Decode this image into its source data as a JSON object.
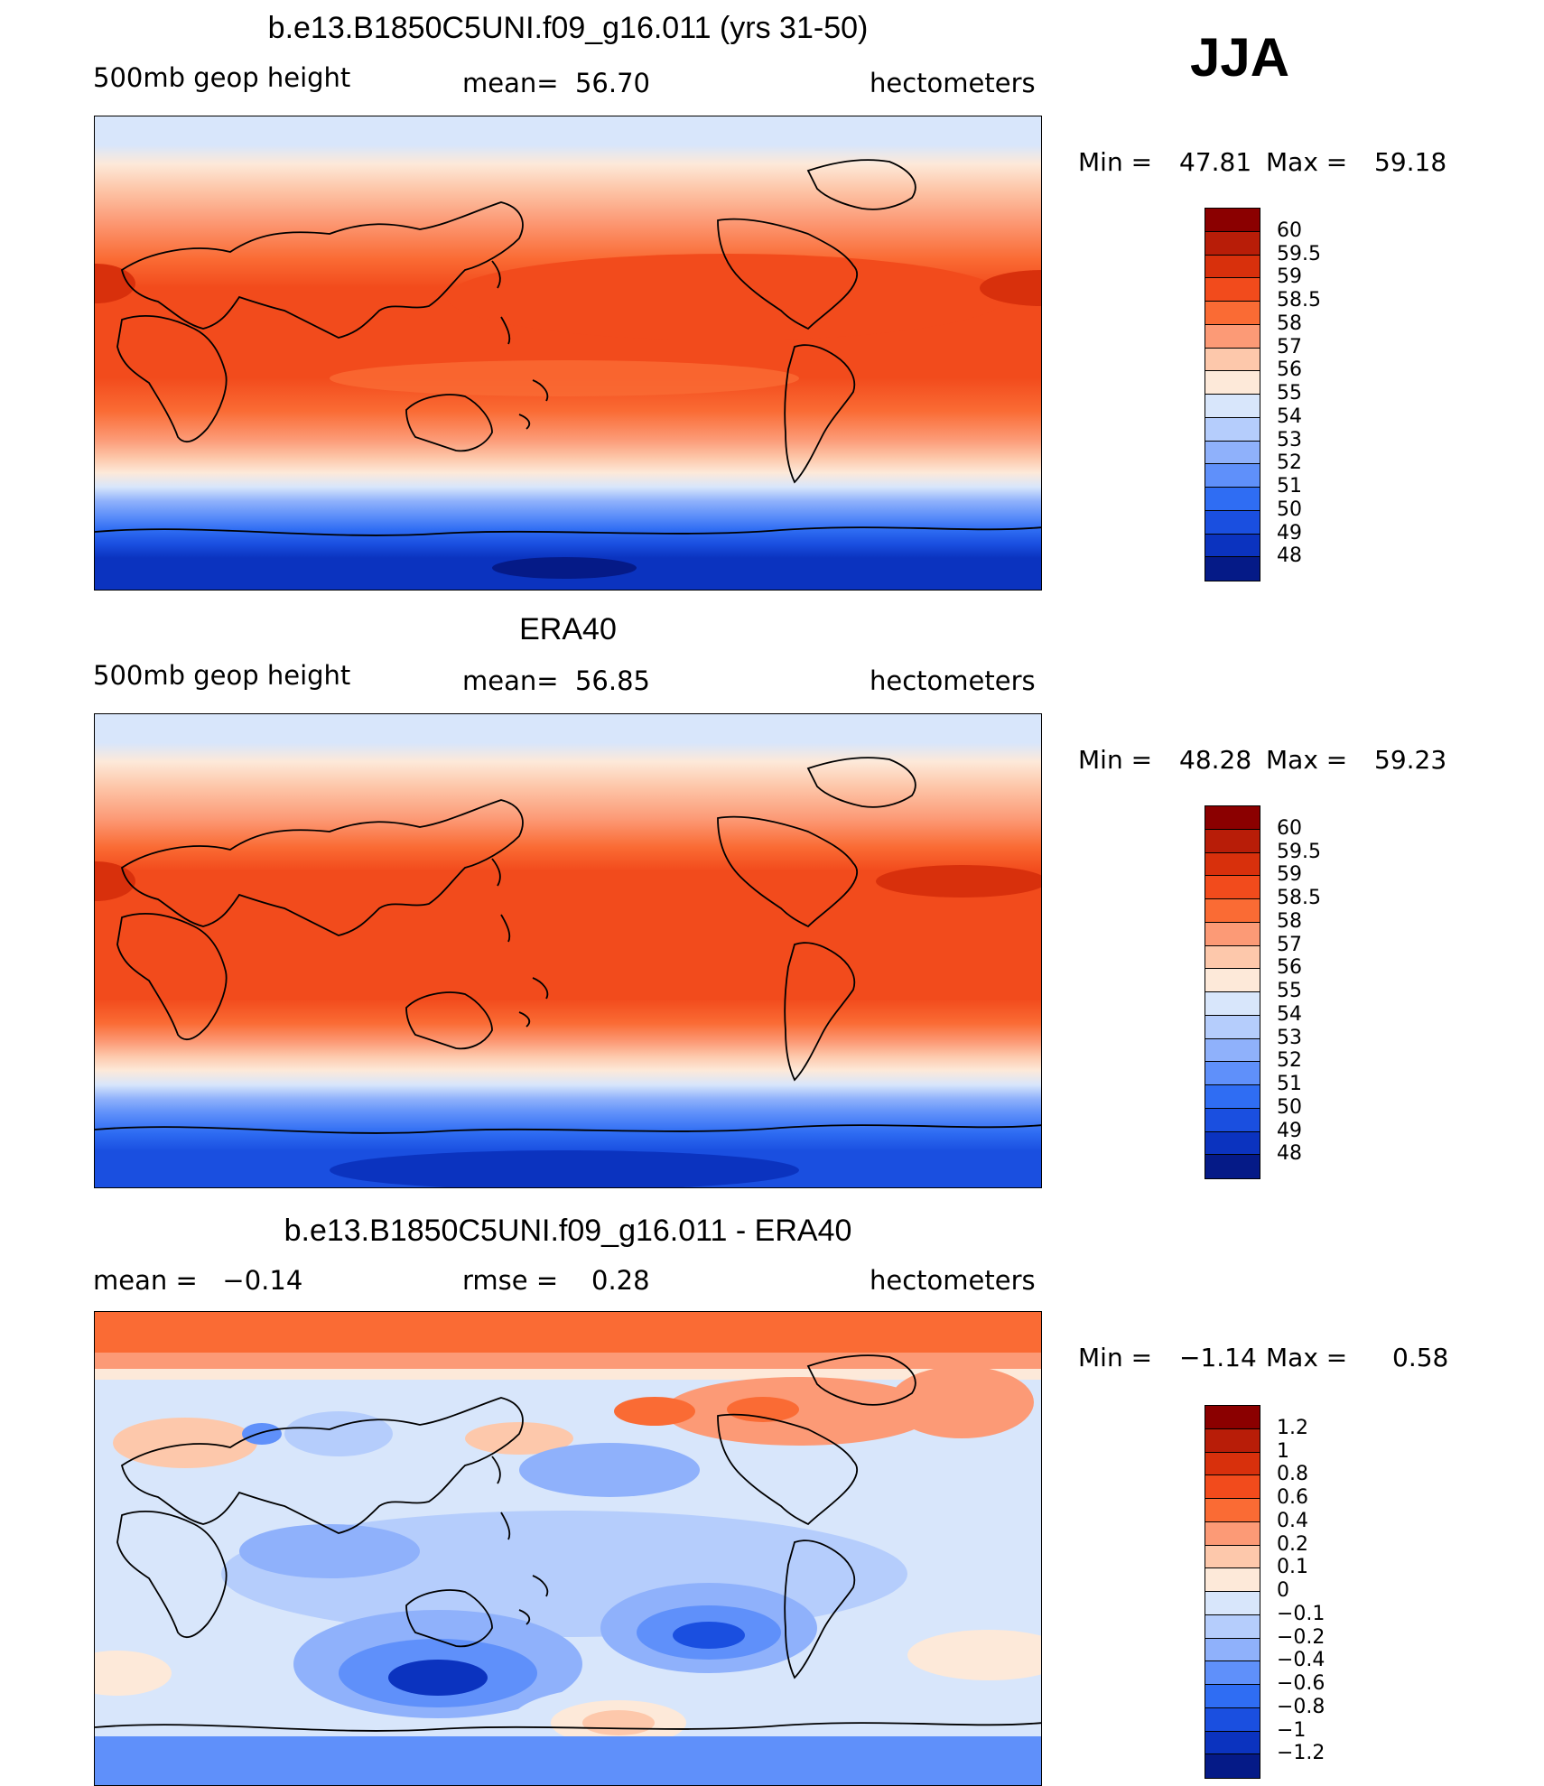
{
  "season": "JJA",
  "panels": [
    {
      "title": "b.e13.B1850C5UNI.f09_g16.011 (yrs 31-50)",
      "field_label": "500mb geop height",
      "stat_text": "mean=  56.70",
      "units": "hectometers",
      "minmax": {
        "min_label": "Min =",
        "min": "47.81",
        "max_label": "Max =",
        "max": "59.18"
      },
      "legend": {
        "labels": [
          "60",
          "59.5",
          "59",
          "58.5",
          "58",
          "57",
          "56",
          "55",
          "54",
          "53",
          "52",
          "51",
          "50",
          "49",
          "48"
        ],
        "colors": [
          "#8b0000",
          "#b81d08",
          "#d8300c",
          "#f24b1c",
          "#fa6b34",
          "#fc9a76",
          "#fdc8ab",
          "#fde9d9",
          "#d8e6fb",
          "#b5cdfc",
          "#8fb1fb",
          "#5f90fa",
          "#2f6df3",
          "#1a4fe0",
          "#0b33bf",
          "#051a87"
        ]
      }
    },
    {
      "title": "ERA40",
      "field_label": "500mb geop height",
      "stat_text": "mean=  56.85",
      "units": "hectometers",
      "minmax": {
        "min_label": "Min =",
        "min": "48.28",
        "max_label": "Max =",
        "max": "59.23"
      },
      "legend": {
        "labels": [
          "60",
          "59.5",
          "59",
          "58.5",
          "58",
          "57",
          "56",
          "55",
          "54",
          "53",
          "52",
          "51",
          "50",
          "49",
          "48"
        ],
        "colors": [
          "#8b0000",
          "#b81d08",
          "#d8300c",
          "#f24b1c",
          "#fa6b34",
          "#fc9a76",
          "#fdc8ab",
          "#fde9d9",
          "#d8e6fb",
          "#b5cdfc",
          "#8fb1fb",
          "#5f90fa",
          "#2f6df3",
          "#1a4fe0",
          "#0b33bf",
          "#051a87"
        ]
      }
    },
    {
      "title": "b.e13.B1850C5UNI.f09_g16.011 - ERA40",
      "field_label": "mean =   −0.14",
      "stat_text": "rmse =    0.28",
      "units": "hectometers",
      "minmax": {
        "min_label": "Min =",
        "min": "−1.14",
        "max_label": "Max =",
        "max": "0.58"
      },
      "legend": {
        "labels": [
          "1.2",
          "1",
          "0.8",
          "0.6",
          "0.4",
          "0.2",
          "0.1",
          "0",
          "−0.1",
          "−0.2",
          "−0.4",
          "−0.6",
          "−0.8",
          "−1",
          "−1.2"
        ],
        "colors": [
          "#8b0000",
          "#b81d08",
          "#d8300c",
          "#f24b1c",
          "#fa6b34",
          "#fc9a76",
          "#fdc8ab",
          "#fde9d9",
          "#d8e6fb",
          "#b5cdfc",
          "#8fb1fb",
          "#5f90fa",
          "#2f6df3",
          "#1a4fe0",
          "#0b33bf",
          "#051a87"
        ]
      }
    }
  ]
}
